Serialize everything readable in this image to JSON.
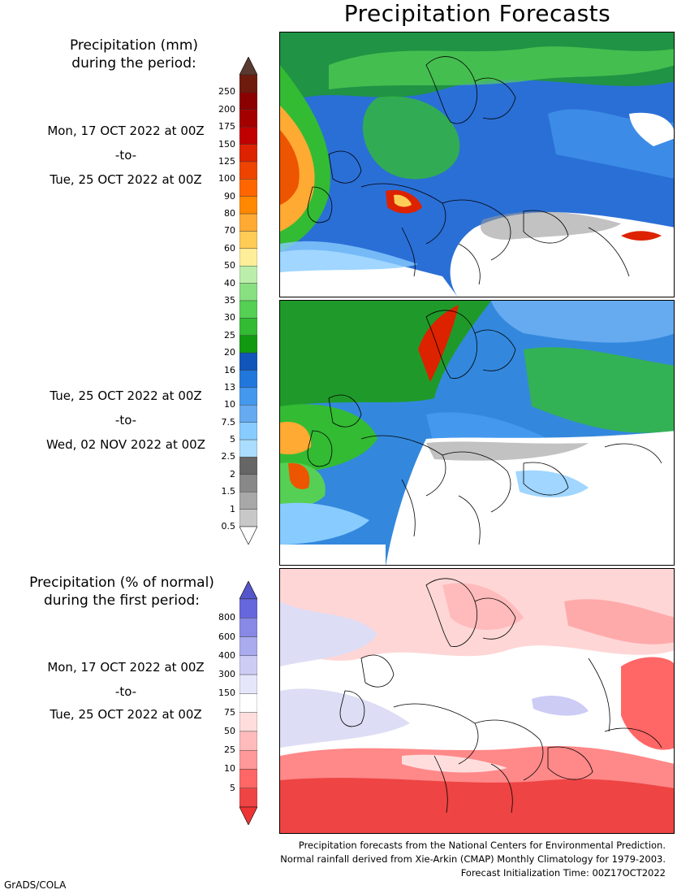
{
  "title": "Precipitation Forecasts",
  "amount_legend": {
    "header_line1": "Precipitation (mm)",
    "header_line2": "during the period:",
    "ticks": [
      "250",
      "200",
      "175",
      "150",
      "125",
      "100",
      "90",
      "80",
      "70",
      "60",
      "50",
      "40",
      "35",
      "30",
      "25",
      "20",
      "16",
      "13",
      "10",
      "7.5",
      "5",
      "2.5",
      "2",
      "1.5",
      "1",
      "0.5"
    ],
    "colors": [
      "#6e1b0e",
      "#8b0000",
      "#a50000",
      "#c00000",
      "#dd2200",
      "#ee4400",
      "#ff6600",
      "#ff8800",
      "#ffaa33",
      "#ffcc55",
      "#ffee99",
      "#bbeeaa",
      "#88e080",
      "#55d055",
      "#33bb33",
      "#119911",
      "#1155bb",
      "#2277dd",
      "#4499ee",
      "#66aaf0",
      "#88ccff",
      "#aaddff",
      "#666666",
      "#888888",
      "#a8a8a8",
      "#c8c8c8"
    ],
    "top_cap_color": "#5a3a30"
  },
  "period1": {
    "start": "Mon, 17 OCT 2022 at 00Z",
    "to": "-to-",
    "end": "Tue, 25 OCT 2022 at 00Z"
  },
  "period2": {
    "start": "Tue, 25 OCT 2022 at 00Z",
    "to": "-to-",
    "end": "Wed, 02 NOV 2022 at 00Z"
  },
  "percent_legend": {
    "header_line1": "Precipitation (% of normal)",
    "header_line2": "during the first period:",
    "ticks": [
      "800",
      "600",
      "400",
      "300",
      "150",
      "75",
      "50",
      "25",
      "10",
      "5"
    ],
    "colors": [
      "#6666dd",
      "#8888e6",
      "#aaaaee",
      "#ccccf5",
      "#e6e6fb",
      "#ffffff",
      "#ffdddd",
      "#ffbbbb",
      "#ff9999",
      "#ff6666",
      "#ee4444"
    ],
    "top_cap_color": "#5555cc",
    "bottom_cap_color": "#ee3333"
  },
  "period3": {
    "start": "Mon, 17 OCT 2022 at 00Z",
    "to": "-to-",
    "end": "Tue, 25 OCT 2022 at 00Z"
  },
  "footer": {
    "line1": "Precipitation forecasts from the National Centers for Environmental Prediction.",
    "line2": "Normal rainfall derived from Xie-Arkin (CMAP) Monthly Climatology for 1979-2003.",
    "line3": "Forecast Initialization Time: 00Z17OCT2022"
  },
  "credit": "GrADS/COLA"
}
